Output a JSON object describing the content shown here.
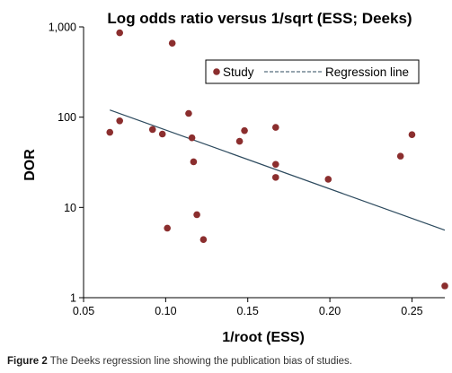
{
  "chart_data": {
    "type": "scatter",
    "title": "Log odds ratio versus 1/sqrt (ESS; Deeks)",
    "xlabel": "1/root (ESS)",
    "ylabel": "DOR",
    "x_scale": "linear",
    "y_scale": "log",
    "xlim": [
      0.05,
      0.27
    ],
    "ylim": [
      1,
      1000
    ],
    "x_ticks": [
      0.05,
      0.1,
      0.15,
      0.2,
      0.25
    ],
    "x_tick_labels": [
      "0.05",
      "0.10",
      "0.15",
      "0.20",
      "0.25"
    ],
    "y_ticks": [
      1,
      10,
      100,
      1000
    ],
    "y_tick_labels": [
      "1",
      "10",
      "100",
      "1,000"
    ],
    "grid": false,
    "legend": {
      "position": "top-right",
      "entries": [
        "Study",
        "Regression line"
      ]
    },
    "series": [
      {
        "name": "Study",
        "marker": "dot",
        "color": "#8B2E2E",
        "points": [
          {
            "x": 0.072,
            "y": 860
          },
          {
            "x": 0.104,
            "y": 660
          },
          {
            "x": 0.066,
            "y": 68
          },
          {
            "x": 0.072,
            "y": 91
          },
          {
            "x": 0.092,
            "y": 73
          },
          {
            "x": 0.098,
            "y": 65
          },
          {
            "x": 0.114,
            "y": 110
          },
          {
            "x": 0.116,
            "y": 59
          },
          {
            "x": 0.117,
            "y": 32
          },
          {
            "x": 0.119,
            "y": 8.3
          },
          {
            "x": 0.101,
            "y": 5.9
          },
          {
            "x": 0.123,
            "y": 4.4
          },
          {
            "x": 0.145,
            "y": 54
          },
          {
            "x": 0.148,
            "y": 71
          },
          {
            "x": 0.167,
            "y": 77
          },
          {
            "x": 0.167,
            "y": 30
          },
          {
            "x": 0.167,
            "y": 21.5
          },
          {
            "x": 0.199,
            "y": 20.5
          },
          {
            "x": 0.243,
            "y": 37
          },
          {
            "x": 0.25,
            "y": 64
          },
          {
            "x": 0.27,
            "y": 1.35
          }
        ]
      },
      {
        "name": "Regression line",
        "type": "line",
        "color": "#2c4a5e",
        "points": [
          {
            "x": 0.066,
            "y": 120
          },
          {
            "x": 0.27,
            "y": 5.6
          }
        ]
      }
    ]
  },
  "caption": {
    "label": "Figure 2",
    "text": "The Deeks regression line showing the publication bias of studies."
  }
}
